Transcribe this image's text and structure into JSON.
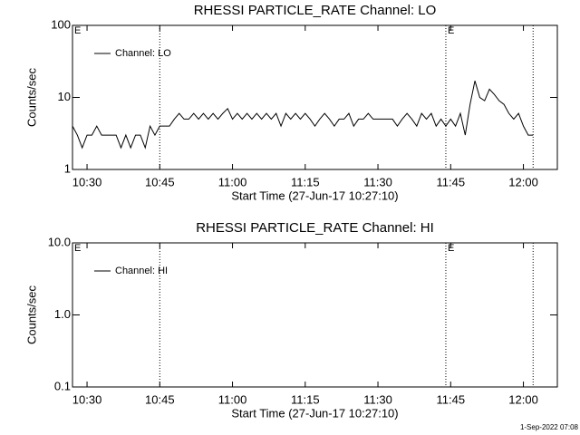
{
  "chart_data": [
    {
      "type": "line",
      "title": "RHESSI PARTICLE_RATE Channel: LO",
      "x_label": "Start Time (27-Jun-17 10:27:10)",
      "y_label": "Counts/sec",
      "log_y": true,
      "xlim": [
        "10:27",
        "12:07"
      ],
      "xticks": [
        "10:30",
        "10:45",
        "11:00",
        "11:15",
        "11:30",
        "11:45",
        "12:00"
      ],
      "ylim": [
        1,
        100
      ],
      "yticks": [
        1,
        10,
        100
      ],
      "vlines": [
        "10:45",
        "11:44",
        "12:02"
      ],
      "annotations": [
        {
          "x": "10:27",
          "text": "E"
        },
        {
          "x": "11:44",
          "text": "E"
        }
      ],
      "legend": "upper left",
      "x": [
        "10:27",
        "10:28",
        "10:29",
        "10:30",
        "10:31",
        "10:32",
        "10:33",
        "10:34",
        "10:35",
        "10:36",
        "10:37",
        "10:38",
        "10:39",
        "10:40",
        "10:41",
        "10:42",
        "10:43",
        "10:44",
        "10:45",
        "10:46",
        "10:47",
        "10:48",
        "10:49",
        "10:50",
        "10:51",
        "10:52",
        "10:53",
        "10:54",
        "10:55",
        "10:56",
        "10:57",
        "10:58",
        "10:59",
        "11:00",
        "11:01",
        "11:02",
        "11:03",
        "11:04",
        "11:05",
        "11:06",
        "11:07",
        "11:08",
        "11:09",
        "11:10",
        "11:11",
        "11:12",
        "11:13",
        "11:14",
        "11:15",
        "11:16",
        "11:17",
        "11:18",
        "11:19",
        "11:20",
        "11:21",
        "11:22",
        "11:23",
        "11:24",
        "11:25",
        "11:26",
        "11:27",
        "11:28",
        "11:29",
        "11:30",
        "11:31",
        "11:32",
        "11:33",
        "11:34",
        "11:35",
        "11:36",
        "11:37",
        "11:38",
        "11:39",
        "11:40",
        "11:41",
        "11:42",
        "11:43",
        "11:44",
        "11:45",
        "11:46",
        "11:47",
        "11:48",
        "11:49",
        "11:50",
        "11:51",
        "11:52",
        "11:53",
        "11:54",
        "11:55",
        "11:56",
        "11:57",
        "11:58",
        "11:59",
        "12:00",
        "12:01",
        "12:02"
      ],
      "series": [
        {
          "name": "Channel: LO",
          "color": "#000000",
          "values": [
            4,
            3,
            2,
            3,
            3,
            4,
            3,
            3,
            3,
            3,
            2,
            3,
            2,
            3,
            3,
            2,
            4,
            3,
            4,
            4,
            4,
            5,
            6,
            5,
            5,
            6,
            5,
            6,
            5,
            6,
            5,
            6,
            7,
            5,
            6,
            5,
            6,
            5,
            6,
            5,
            6,
            5,
            6,
            4,
            6,
            5,
            6,
            5,
            6,
            5,
            4,
            5,
            6,
            5,
            4,
            5,
            5,
            6,
            4,
            5,
            5,
            6,
            5,
            5,
            5,
            5,
            5,
            4,
            5,
            6,
            5,
            4,
            6,
            5,
            6,
            4,
            5,
            4,
            5,
            4,
            6,
            3,
            8,
            17,
            10,
            9,
            13,
            11,
            9,
            8,
            6,
            5,
            6,
            4,
            3,
            3
          ]
        }
      ]
    },
    {
      "type": "line",
      "title": "RHESSI PARTICLE_RATE Channel: HI",
      "x_label": "Start Time (27-Jun-17 10:27:10)",
      "y_label": "Counts/sec",
      "log_y": true,
      "xlim": [
        "10:27",
        "12:07"
      ],
      "xticks": [
        "10:30",
        "10:45",
        "11:00",
        "11:15",
        "11:30",
        "11:45",
        "12:00"
      ],
      "ylim": [
        0.1,
        10
      ],
      "yticks": [
        0.1,
        {
          "value": 1,
          "label": "1.0"
        },
        {
          "value": 10,
          "label": "10.0"
        }
      ],
      "vlines": [
        "10:45",
        "11:44",
        "12:02"
      ],
      "annotations": [
        {
          "x": "10:27",
          "text": "E"
        },
        {
          "x": "11:44",
          "text": "E"
        }
      ],
      "legend": "upper left",
      "x": [],
      "series": [
        {
          "name": "Channel: HI",
          "color": "#000000",
          "values": []
        }
      ]
    }
  ],
  "footer": "1-Sep-2022 07:08"
}
